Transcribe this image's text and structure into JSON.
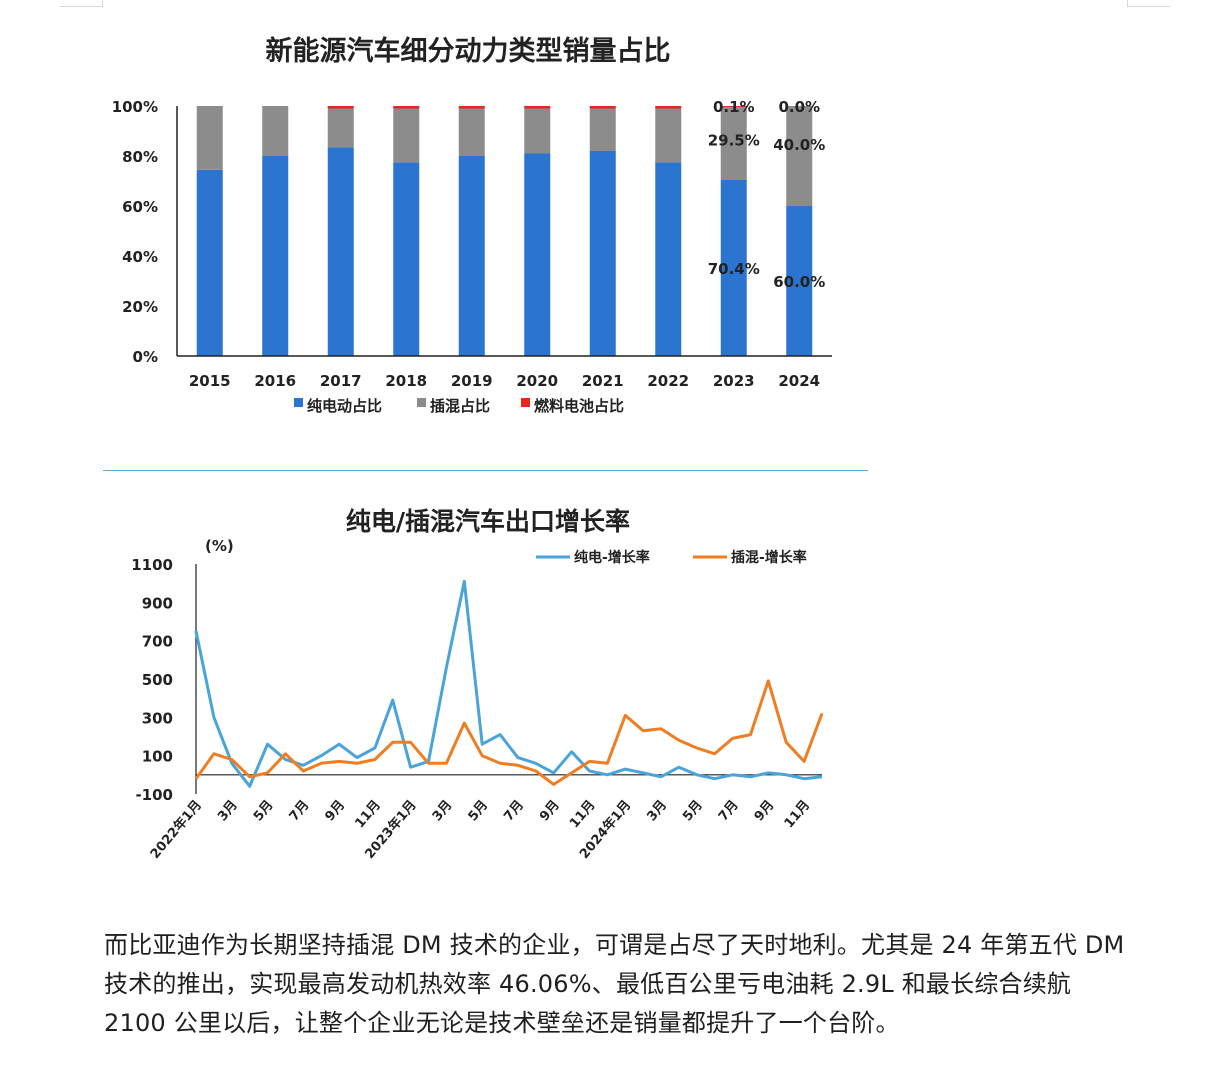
{
  "chart_data": [
    {
      "type": "bar",
      "stacked": true,
      "title": "新能源汽车细分动力类型销量占比",
      "categories": [
        "2015",
        "2016",
        "2017",
        "2018",
        "2019",
        "2020",
        "2021",
        "2022",
        "2023",
        "2024"
      ],
      "ylim": [
        0,
        100
      ],
      "yticks": [
        "0%",
        "20%",
        "40%",
        "60%",
        "80%",
        "100%"
      ],
      "series": [
        {
          "name": "纯电动占比",
          "color": "#2b74cf",
          "values": [
            74.5,
            80.0,
            83.5,
            77.5,
            80.0,
            81.0,
            82.0,
            77.5,
            70.4,
            60.0
          ]
        },
        {
          "name": "插混占比",
          "color": "#8c8c8c",
          "values": [
            25.5,
            20.0,
            15.5,
            21.5,
            19.0,
            18.0,
            17.0,
            21.5,
            29.5,
            40.0
          ]
        },
        {
          "name": "燃料电池占比",
          "color": "#e8251f",
          "values": [
            0,
            0,
            1.0,
            1.0,
            1.0,
            1.0,
            1.0,
            1.0,
            0.1,
            0.0
          ]
        }
      ],
      "data_labels": [
        {
          "category": "2023",
          "series": "燃料电池占比",
          "text": "0.1%"
        },
        {
          "category": "2023",
          "series": "插混占比",
          "text": "29.5%"
        },
        {
          "category": "2023",
          "series": "纯电动占比",
          "text": "70.4%"
        },
        {
          "category": "2024",
          "series": "燃料电池占比",
          "text": "0.0%"
        },
        {
          "category": "2024",
          "series": "插混占比",
          "text": "40.0%"
        },
        {
          "category": "2024",
          "series": "纯电动占比",
          "text": "60.0%"
        }
      ],
      "legend": "bottom"
    },
    {
      "type": "line",
      "title": "纯电/插混汽车出口增长率",
      "ylabel": "(%)",
      "ylim": [
        -100,
        1100
      ],
      "yticks": [
        "-100",
        "100",
        "300",
        "500",
        "700",
        "900",
        "1100"
      ],
      "xticks": [
        {
          "index": 0,
          "label": "2022年1月"
        },
        {
          "index": 2,
          "label": "3月"
        },
        {
          "index": 4,
          "label": "5月"
        },
        {
          "index": 6,
          "label": "7月"
        },
        {
          "index": 8,
          "label": "9月"
        },
        {
          "index": 10,
          "label": "11月"
        },
        {
          "index": 12,
          "label": "2023年1月"
        },
        {
          "index": 14,
          "label": "3月"
        },
        {
          "index": 16,
          "label": "5月"
        },
        {
          "index": 18,
          "label": "7月"
        },
        {
          "index": 20,
          "label": "9月"
        },
        {
          "index": 22,
          "label": "11月"
        },
        {
          "index": 24,
          "label": "2024年1月"
        },
        {
          "index": 26,
          "label": "3月"
        },
        {
          "index": 28,
          "label": "5月"
        },
        {
          "index": 30,
          "label": "7月"
        },
        {
          "index": 32,
          "label": "9月"
        },
        {
          "index": 34,
          "label": "11月"
        }
      ],
      "series": [
        {
          "name": "纯电-增长率",
          "color": "#4aa3d9",
          "values": [
            750,
            300,
            60,
            -60,
            160,
            80,
            50,
            100,
            160,
            90,
            140,
            390,
            40,
            70,
            560,
            1010,
            160,
            210,
            90,
            60,
            10,
            120,
            20,
            0,
            30,
            10,
            -10,
            40,
            0,
            -20,
            0,
            -10,
            10,
            0,
            -20,
            -10
          ]
        },
        {
          "name": "插混-增长率",
          "color": "#f07d22",
          "values": [
            -20,
            110,
            80,
            -10,
            10,
            110,
            20,
            60,
            70,
            60,
            80,
            170,
            170,
            60,
            60,
            270,
            100,
            60,
            50,
            20,
            -50,
            10,
            70,
            60,
            310,
            230,
            240,
            180,
            140,
            110,
            190,
            210,
            490,
            170,
            70,
            320
          ]
        }
      ],
      "legend": "top-right"
    }
  ],
  "paragraph": "而比亚迪作为长期坚持插混 DM 技术的企业，可谓是占尽了天时地利。尤其是 24 年第五代 DM 技术的推出，实现最高发动机热效率 46.06%、最低百公里亏电油耗 2.9L 和最长综合续航 2100 公里以后，让整个企业无论是技术壁垒还是销量都提升了一个台阶。"
}
